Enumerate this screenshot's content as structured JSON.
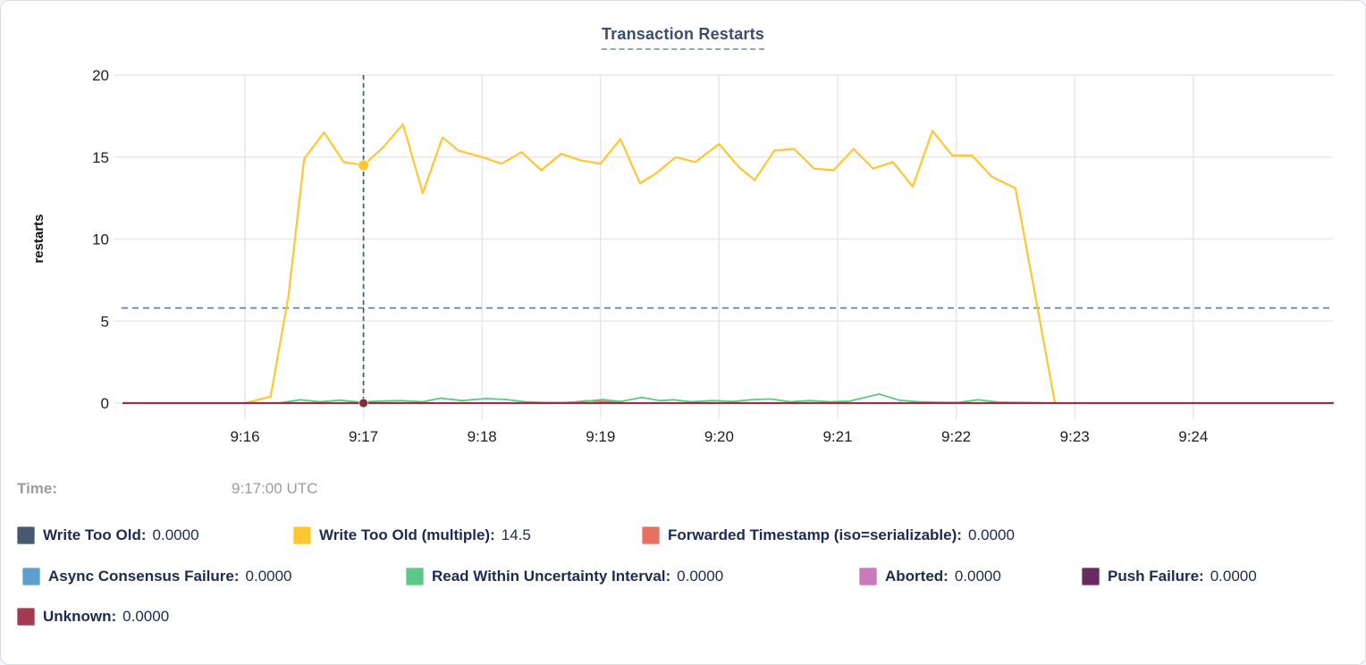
{
  "title": "Transaction Restarts",
  "time": {
    "label": "Time:",
    "value": "9:17:00 UTC"
  },
  "chart_data": {
    "type": "line",
    "title": "Transaction Restarts",
    "xlabel": "",
    "ylabel": "restarts",
    "ylim": [
      0,
      20
    ],
    "y_ticks": [
      0,
      5,
      10,
      15,
      20
    ],
    "x_ticks": [
      {
        "label": "9:16",
        "sec": 0
      },
      {
        "label": "9:17",
        "sec": 60
      },
      {
        "label": "9:18",
        "sec": 120
      },
      {
        "label": "9:19",
        "sec": 180
      },
      {
        "label": "9:20",
        "sec": 240
      },
      {
        "label": "9:21",
        "sec": 300
      },
      {
        "label": "9:22",
        "sec": 360
      },
      {
        "label": "9:23",
        "sec": 420
      },
      {
        "label": "9:24",
        "sec": 480
      }
    ],
    "x_domain_seconds": [
      -62,
      551
    ],
    "grid": true,
    "hover": {
      "time": "9:17:00 UTC",
      "x_seconds": 60,
      "guide_value": 5.8,
      "dots": [
        {
          "series": "Write Too Old (multiple)",
          "value": 14.5,
          "color": "#ffc62f",
          "r": 6
        },
        {
          "series": "Unknown",
          "value": 0,
          "color": "#7e2c3f",
          "r": 5
        }
      ]
    },
    "series": [
      {
        "name": "Write Too Old",
        "color": "#475872",
        "width": 1.6,
        "points": [
          [
            -62,
            0
          ],
          [
            551,
            0
          ]
        ]
      },
      {
        "name": "Async Consensus Failure",
        "color": "#5e9fd0",
        "width": 1.6,
        "points": [
          [
            -62,
            0
          ],
          [
            551,
            0
          ]
        ]
      },
      {
        "name": "Aborted",
        "color": "#ca79ba",
        "width": 1.6,
        "points": [
          [
            -62,
            0
          ],
          [
            551,
            0
          ]
        ]
      },
      {
        "name": "Push Failure",
        "color": "#6d2a60",
        "width": 1.6,
        "points": [
          [
            -62,
            0
          ],
          [
            551,
            0
          ]
        ]
      },
      {
        "name": "Forwarded Timestamp (iso=serializable)",
        "color": "#e8705f",
        "width": 1.8,
        "points": [
          [
            -62,
            0
          ],
          [
            158,
            0
          ],
          [
            166,
            0.06
          ],
          [
            173,
            0.14
          ],
          [
            182,
            0.1
          ],
          [
            190,
            0
          ],
          [
            551,
            0
          ]
        ]
      },
      {
        "name": "Read Within Uncertainty Interval",
        "color": "#5bc985",
        "width": 1.8,
        "points": [
          [
            18,
            0.02
          ],
          [
            28,
            0.2
          ],
          [
            38,
            0.08
          ],
          [
            48,
            0.18
          ],
          [
            58,
            0.06
          ],
          [
            68,
            0.12
          ],
          [
            79,
            0.15
          ],
          [
            90,
            0.08
          ],
          [
            99,
            0.3
          ],
          [
            110,
            0.15
          ],
          [
            122,
            0.28
          ],
          [
            132,
            0.22
          ],
          [
            142,
            0.08
          ],
          [
            152,
            0.03
          ],
          [
            162,
            0.03
          ],
          [
            172,
            0.1
          ],
          [
            181,
            0.22
          ],
          [
            190,
            0.1
          ],
          [
            201,
            0.35
          ],
          [
            210,
            0.15
          ],
          [
            217,
            0.2
          ],
          [
            226,
            0.08
          ],
          [
            237,
            0.15
          ],
          [
            247,
            0.1
          ],
          [
            256,
            0.2
          ],
          [
            266,
            0.25
          ],
          [
            276,
            0.08
          ],
          [
            286,
            0.15
          ],
          [
            296,
            0.08
          ],
          [
            306,
            0.12
          ],
          [
            321,
            0.55
          ],
          [
            331,
            0.18
          ],
          [
            341,
            0.08
          ],
          [
            351,
            0.05
          ],
          [
            361,
            0.04
          ],
          [
            371,
            0.2
          ],
          [
            381,
            0.06
          ],
          [
            395,
            0.03
          ],
          [
            410,
            0
          ]
        ]
      },
      {
        "name": "Write Too Old (multiple)",
        "color": "#ffc62f",
        "width": 2.2,
        "points": [
          [
            0,
            0
          ],
          [
            13,
            0.4
          ],
          [
            22,
            6.5
          ],
          [
            30,
            14.9
          ],
          [
            40,
            16.5
          ],
          [
            50,
            14.7
          ],
          [
            55,
            14.6
          ],
          [
            60,
            14.5
          ],
          [
            70,
            15.6
          ],
          [
            80,
            17.0
          ],
          [
            90,
            12.8
          ],
          [
            100,
            16.2
          ],
          [
            108,
            15.4
          ],
          [
            120,
            15.0
          ],
          [
            130,
            14.6
          ],
          [
            140,
            15.3
          ],
          [
            150,
            14.2
          ],
          [
            160,
            15.2
          ],
          [
            170,
            14.8
          ],
          [
            180,
            14.6
          ],
          [
            190,
            16.1
          ],
          [
            200,
            13.4
          ],
          [
            208,
            14.0
          ],
          [
            218,
            15.0
          ],
          [
            228,
            14.7
          ],
          [
            240,
            15.8
          ],
          [
            250,
            14.4
          ],
          [
            258,
            13.6
          ],
          [
            268,
            15.4
          ],
          [
            278,
            15.5
          ],
          [
            288,
            14.3
          ],
          [
            298,
            14.2
          ],
          [
            308,
            15.5
          ],
          [
            318,
            14.3
          ],
          [
            328,
            14.7
          ],
          [
            338,
            13.2
          ],
          [
            348,
            16.6
          ],
          [
            358,
            15.1
          ],
          [
            368,
            15.1
          ],
          [
            378,
            13.8
          ],
          [
            390,
            13.1
          ],
          [
            410,
            0
          ]
        ]
      },
      {
        "name": "Unknown",
        "color": "#913247",
        "width": 2.2,
        "points": [
          [
            -62,
            0
          ],
          [
            551,
            0
          ]
        ]
      }
    ],
    "legend_position": "bottom"
  },
  "legend": {
    "rows": [
      [
        {
          "label": "Write Too Old",
          "value": "0.0000",
          "color": "#475872"
        },
        {
          "label": "Write Too Old (multiple)",
          "value": "14.5",
          "color": "#ffc62f"
        },
        {
          "label": "Forwarded Timestamp (iso=serializable)",
          "value": "0.0000",
          "color": "#e8705f"
        }
      ],
      [
        {
          "label": "Async Consensus Failure",
          "value": "0.0000",
          "color": "#5e9fd0"
        },
        {
          "label": "Read Within Uncertainty Interval",
          "value": "0.0000",
          "color": "#5bc985"
        },
        {
          "label": "Aborted",
          "value": "0.0000",
          "color": "#ca79ba"
        },
        {
          "label": "Push Failure",
          "value": "0.0000",
          "color": "#6d2a60"
        }
      ],
      [
        {
          "label": "Unknown",
          "value": "0.0000",
          "color": "#a23a52"
        }
      ]
    ]
  }
}
